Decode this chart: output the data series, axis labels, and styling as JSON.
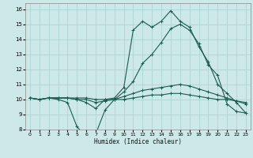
{
  "xlabel": "Humidex (Indice chaleur)",
  "xlim": [
    -0.5,
    23.5
  ],
  "ylim": [
    8,
    16.4
  ],
  "xticks": [
    0,
    1,
    2,
    3,
    4,
    5,
    6,
    7,
    8,
    9,
    10,
    11,
    12,
    13,
    14,
    15,
    16,
    17,
    18,
    19,
    20,
    21,
    22,
    23
  ],
  "yticks": [
    8,
    9,
    10,
    11,
    12,
    13,
    14,
    15,
    16
  ],
  "bg_color": "#cde8e8",
  "grid_color": "#afd4d4",
  "line_color": "#1a5c50",
  "line1_y": [
    10.1,
    10.0,
    10.1,
    10.0,
    9.8,
    8.2,
    7.5,
    7.7,
    9.3,
    10.0,
    10.5,
    11.2,
    12.4,
    13.0,
    13.8,
    14.7,
    15.0,
    14.6,
    13.7,
    12.3,
    11.6,
    9.7,
    9.2,
    9.1
  ],
  "line2_y": [
    10.1,
    10.0,
    10.1,
    10.1,
    10.1,
    10.0,
    10.0,
    9.8,
    9.9,
    10.0,
    10.2,
    10.4,
    10.6,
    10.7,
    10.8,
    10.9,
    11.0,
    10.9,
    10.7,
    10.5,
    10.3,
    10.1,
    9.9,
    9.7
  ],
  "line3_y": [
    10.1,
    10.0,
    10.1,
    10.1,
    10.1,
    10.1,
    10.1,
    10.0,
    10.0,
    10.0,
    10.0,
    10.1,
    10.2,
    10.3,
    10.3,
    10.4,
    10.4,
    10.3,
    10.2,
    10.1,
    10.0,
    10.0,
    9.9,
    9.8
  ],
  "line4_y": [
    10.1,
    10.0,
    10.1,
    10.1,
    10.1,
    10.0,
    9.8,
    9.4,
    10.0,
    10.1,
    10.8,
    14.6,
    15.2,
    14.8,
    15.2,
    15.9,
    15.2,
    14.8,
    13.5,
    12.5,
    11.0,
    10.4,
    9.8,
    9.1
  ]
}
